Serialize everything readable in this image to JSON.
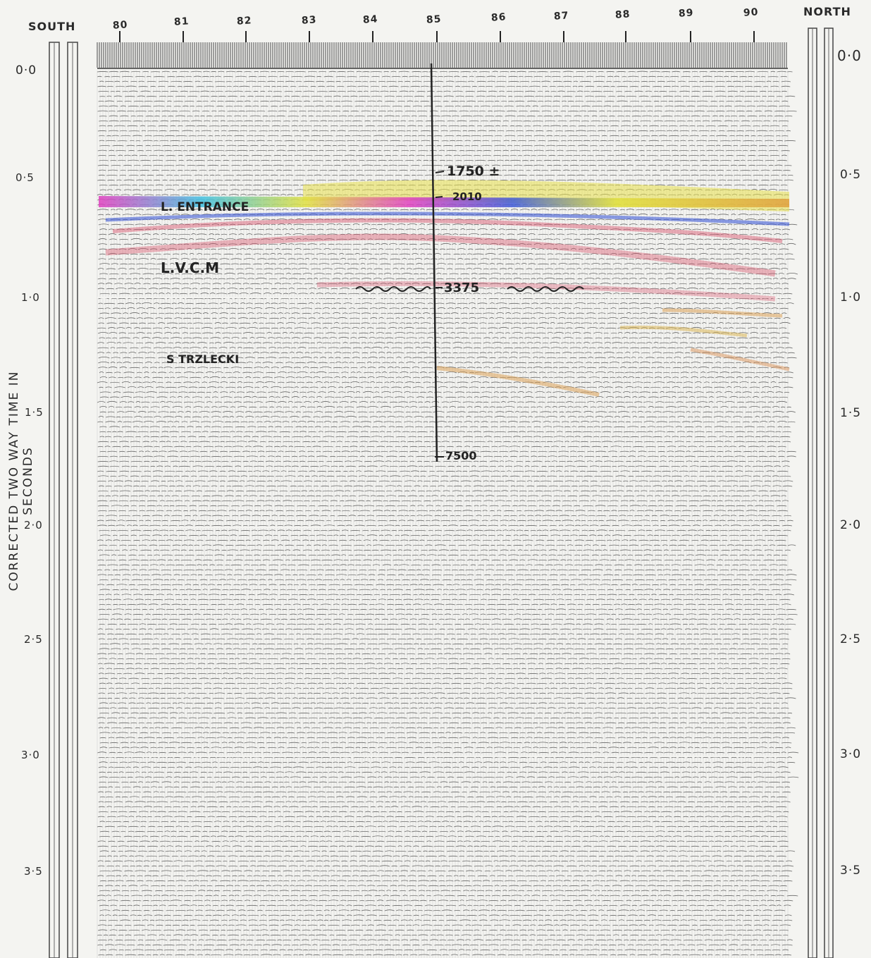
{
  "header": {
    "south": "SOUTH",
    "north": "NORTH"
  },
  "shotpoints": [
    "80",
    "81",
    "82",
    "83",
    "84",
    "85",
    "86",
    "87",
    "88",
    "89",
    "90"
  ],
  "time_ticks_left": [
    "0·0",
    "0·5",
    "1·0",
    "1·5",
    "2·0",
    "2·5",
    "3·0",
    "3·5"
  ],
  "time_ticks_right": [
    "0·0",
    "0·5",
    "1·0",
    "1·5",
    "2·0",
    "2·5",
    "3·0",
    "3·5"
  ],
  "axis_title": "CORRECTED TWO WAY TIME IN SECONDS",
  "horizons": {
    "l_entrance": "L. ENTRANCE",
    "lvcm": "L.V.C.M",
    "s_trzlecki": "S TRZLECKI"
  },
  "well": {
    "depth_top": "1750 ±",
    "depth_2": "2010",
    "depth_3": "3375",
    "depth_td": "7500"
  },
  "colors": {
    "yellow": "#e8e04a",
    "blue": "#3f5bd8",
    "red": "#d9506a",
    "orange": "#d99a4a",
    "ink": "#2b2b2b"
  }
}
